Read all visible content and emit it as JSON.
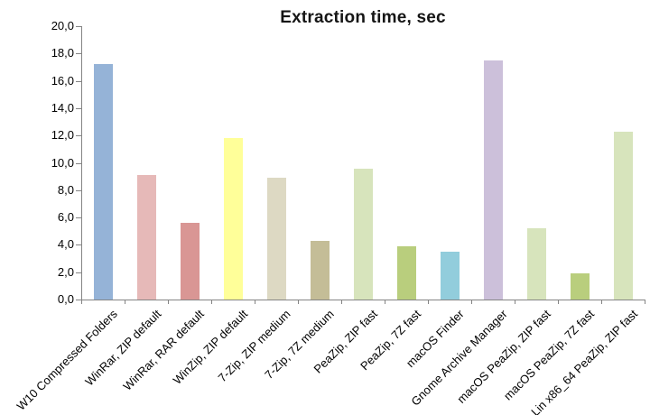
{
  "chart_data": {
    "type": "bar",
    "title": "Extraction time, sec",
    "categories": [
      "W10 Compressed Folders",
      "WinRar, ZIP default",
      "WinRar, RAR default",
      "WinZip, ZIP default",
      "7-Zip, ZIP medium",
      "7-Zip, 7Z medium",
      "PeaZip, ZIP fast",
      "PeaZip, 7Z fast",
      "macOS Finder",
      "Gnome Archive Manager",
      "macOS PeaZip, ZIP fast",
      "macOS PeaZip, 7Z fast",
      "Lin x86_64 PeaZip, ZIP fast"
    ],
    "values": [
      17.2,
      9.1,
      5.6,
      11.8,
      8.9,
      4.3,
      9.6,
      3.9,
      3.5,
      17.5,
      5.2,
      1.9,
      12.3
    ],
    "bar_colors": [
      "#95B3D7",
      "#E6B9B8",
      "#D99694",
      "#FFFF99",
      "#DDD9C3",
      "#C4BD97",
      "#D7E4BC",
      "#B9CE7D",
      "#92CDDC",
      "#CCC0DA",
      "#D7E4BC",
      "#B9CE7D",
      "#D7E4BC"
    ],
    "xlabel": "",
    "ylabel": "",
    "ylim": [
      0,
      20
    ],
    "ytick_step": 2,
    "ytick_labels": [
      "0,0",
      "2,0",
      "4,0",
      "6,0",
      "8,0",
      "10,0",
      "12,0",
      "14,0",
      "16,0",
      "18,0",
      "20,0"
    ],
    "grid": false,
    "legend": false,
    "axis_color": "#848484",
    "decimal_separator": ","
  }
}
